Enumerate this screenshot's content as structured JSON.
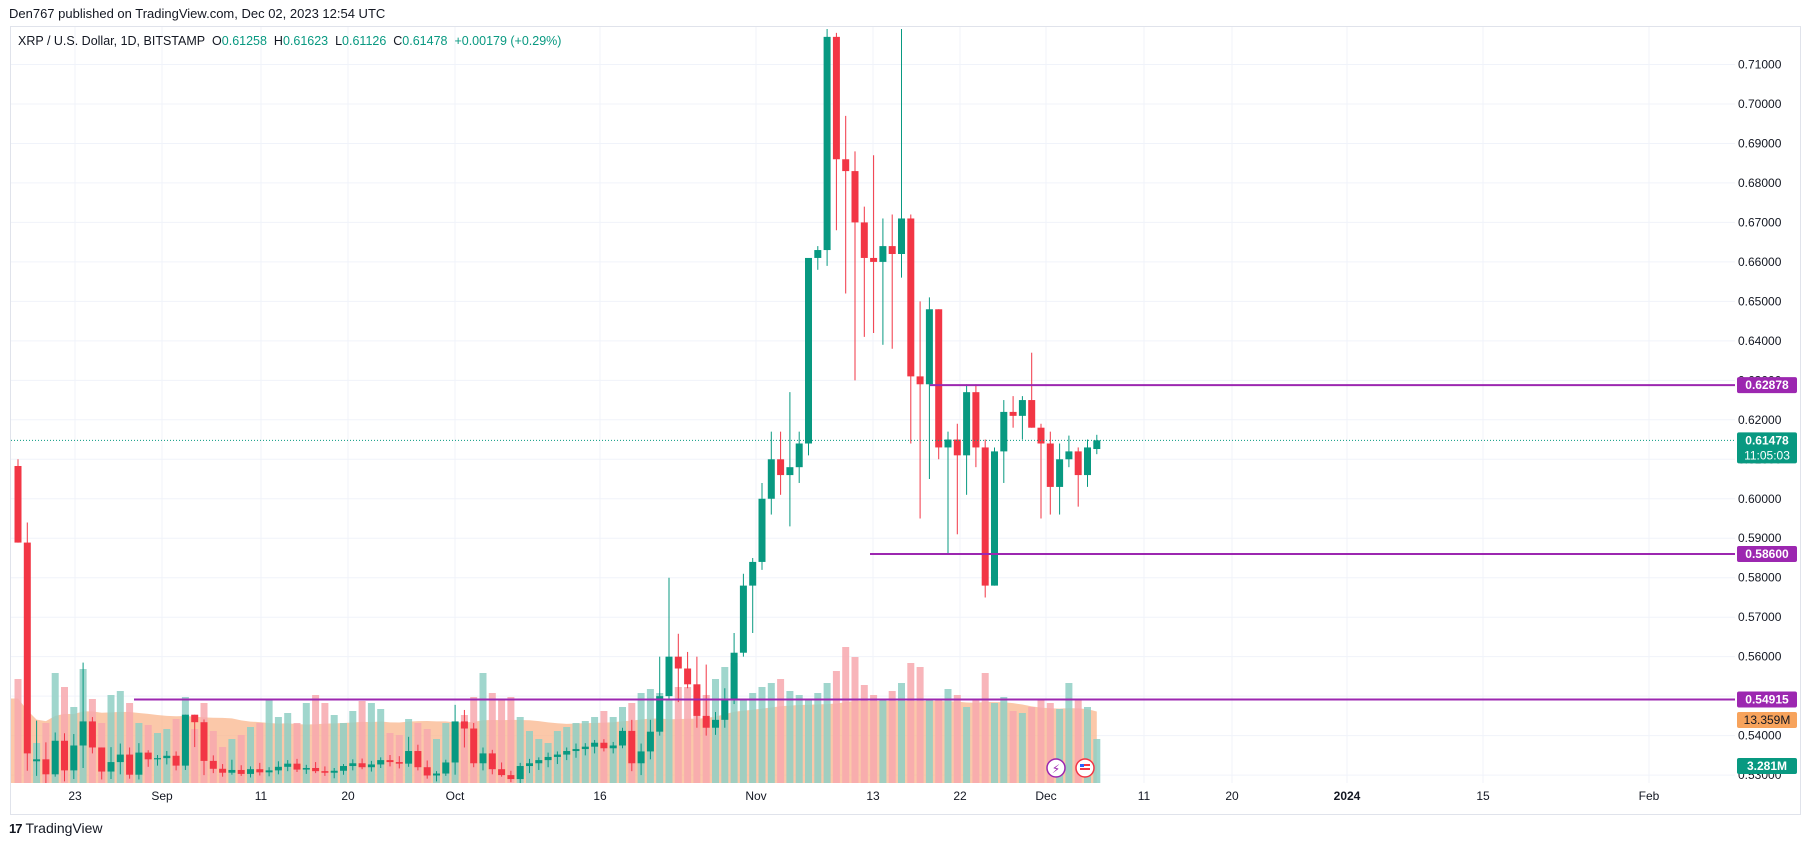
{
  "header": {
    "published": "Den767 published on TradingView.com, Dec 02, 2023 12:54 UTC",
    "symbol": "XRP / U.S. Dollar, 1D, BITSTAMP",
    "o_label": "O",
    "o_value": "0.61258",
    "h_label": "H",
    "h_value": "0.61623",
    "l_label": "L",
    "l_value": "0.61126",
    "c_label": "C",
    "c_value": "0.61478",
    "change": "+0.00179 (+0.29%)"
  },
  "footer": {
    "brand": "TradingView",
    "logo": "17"
  },
  "colors": {
    "up": "#089981",
    "down": "#f23645",
    "up_vol": "#8fcfc4",
    "down_vol": "#f7a8ae",
    "level": "#9c27b0",
    "vol_ma": "#f9b084",
    "grid": "#f0f3fa"
  },
  "chart_data": {
    "type": "candlestick",
    "y_ticks": [
      "0.71000",
      "0.70000",
      "0.69000",
      "0.68000",
      "0.67000",
      "0.66000",
      "0.65000",
      "0.64000",
      "0.63000",
      "0.62000",
      "0.61000",
      "0.60000",
      "0.59000",
      "0.58000",
      "0.57000",
      "0.56000",
      "0.55000",
      "0.54000",
      "0.53000"
    ],
    "x_ticks": [
      "23",
      "Sep",
      "11",
      "20",
      "Oct",
      "16",
      "Nov",
      "13",
      "22",
      "Dec",
      "11",
      "20",
      "2024",
      "15",
      "Feb"
    ],
    "ylim": [
      0.528,
      0.7195
    ],
    "levels": [
      {
        "value": 0.62878,
        "label": "0.62878"
      },
      {
        "value": 0.586,
        "label": "0.58600"
      },
      {
        "value": 0.54915,
        "label": "0.54915"
      }
    ],
    "last_price": {
      "value": 0.61478,
      "label": "0.61478",
      "countdown": "11:05:03"
    },
    "volume_badge": "13.359M",
    "volume_ma_badge": "3.281M",
    "candles": [
      [
        0.6083,
        0.61,
        0.5889,
        0.5889
      ],
      [
        0.5889,
        0.594,
        0.5311,
        0.5355
      ],
      [
        0.5335,
        0.5438,
        0.5298,
        0.534
      ],
      [
        0.534,
        0.5383,
        0.528,
        0.5302
      ],
      [
        0.5302,
        0.5408,
        0.5296,
        0.5387
      ],
      [
        0.5387,
        0.5406,
        0.5284,
        0.5312
      ],
      [
        0.5312,
        0.5404,
        0.529,
        0.5375
      ],
      [
        0.5375,
        0.5585,
        0.5318,
        0.5436
      ],
      [
        0.5436,
        0.5447,
        0.5355,
        0.537
      ],
      [
        0.537,
        0.537,
        0.5289,
        0.5309
      ],
      [
        0.5309,
        0.5371,
        0.529,
        0.5333
      ],
      [
        0.5333,
        0.538,
        0.5302,
        0.5352
      ],
      [
        0.5352,
        0.537,
        0.5291,
        0.5301
      ],
      [
        0.5301,
        0.5381,
        0.5289,
        0.5357
      ],
      [
        0.5357,
        0.5363,
        0.5321,
        0.534
      ],
      [
        0.534,
        0.5351,
        0.5324,
        0.5343
      ],
      [
        0.5343,
        0.5361,
        0.5327,
        0.5349
      ],
      [
        0.5349,
        0.536,
        0.5312,
        0.5324
      ],
      [
        0.5324,
        0.5453,
        0.5313,
        0.5453
      ],
      [
        0.5453,
        0.5453,
        0.5371,
        0.5434
      ],
      [
        0.5434,
        0.5441,
        0.53,
        0.5336
      ],
      [
        0.5336,
        0.535,
        0.5305,
        0.5316
      ],
      [
        0.5316,
        0.5328,
        0.5296,
        0.5306
      ],
      [
        0.5306,
        0.5339,
        0.5301,
        0.5313
      ],
      [
        0.5313,
        0.5325,
        0.5298,
        0.5303
      ],
      [
        0.5303,
        0.5322,
        0.5294,
        0.5315
      ],
      [
        0.5315,
        0.5331,
        0.5299,
        0.5307
      ],
      [
        0.5307,
        0.532,
        0.5297,
        0.5312
      ],
      [
        0.5312,
        0.5335,
        0.5302,
        0.5321
      ],
      [
        0.5321,
        0.5338,
        0.531,
        0.5329
      ],
      [
        0.5329,
        0.5341,
        0.5308,
        0.5314
      ],
      [
        0.5314,
        0.5326,
        0.5303,
        0.5318
      ],
      [
        0.5318,
        0.5333,
        0.5305,
        0.531
      ],
      [
        0.531,
        0.5322,
        0.5298,
        0.5306
      ],
      [
        0.5306,
        0.5318,
        0.5292,
        0.5311
      ],
      [
        0.5311,
        0.5328,
        0.5301,
        0.5323
      ],
      [
        0.5323,
        0.534,
        0.5312,
        0.533
      ],
      [
        0.533,
        0.5342,
        0.5315,
        0.532
      ],
      [
        0.532,
        0.5336,
        0.5309,
        0.5327
      ],
      [
        0.5327,
        0.5345,
        0.5318,
        0.5338
      ],
      [
        0.5338,
        0.5351,
        0.5322,
        0.5333
      ],
      [
        0.5333,
        0.5348,
        0.5317,
        0.5329
      ],
      [
        0.5329,
        0.5397,
        0.5321,
        0.5361
      ],
      [
        0.5361,
        0.5377,
        0.5312,
        0.532
      ],
      [
        0.532,
        0.5337,
        0.5291,
        0.5299
      ],
      [
        0.5299,
        0.531,
        0.5284,
        0.5304
      ],
      [
        0.5304,
        0.5339,
        0.5298,
        0.5332
      ],
      [
        0.5332,
        0.5478,
        0.5301,
        0.5436
      ],
      [
        0.5436,
        0.5465,
        0.537,
        0.5418
      ],
      [
        0.5418,
        0.5432,
        0.532,
        0.533
      ],
      [
        0.533,
        0.537,
        0.5312,
        0.5355
      ],
      [
        0.5355,
        0.5364,
        0.5302,
        0.5315
      ],
      [
        0.5315,
        0.5332,
        0.5296,
        0.53
      ],
      [
        0.53,
        0.5311,
        0.5282,
        0.529
      ],
      [
        0.529,
        0.5331,
        0.528,
        0.5323
      ],
      [
        0.5323,
        0.5341,
        0.5305,
        0.533
      ],
      [
        0.533,
        0.5345,
        0.5313,
        0.5338
      ],
      [
        0.5338,
        0.5357,
        0.532,
        0.5346
      ],
      [
        0.5346,
        0.536,
        0.5328,
        0.5352
      ],
      [
        0.5352,
        0.537,
        0.5338,
        0.5361
      ],
      [
        0.5361,
        0.538,
        0.5344,
        0.5366
      ],
      [
        0.5366,
        0.5381,
        0.535,
        0.5372
      ],
      [
        0.5372,
        0.5389,
        0.5355,
        0.5382
      ],
      [
        0.5382,
        0.5391,
        0.536,
        0.5368
      ],
      [
        0.5368,
        0.5384,
        0.5355,
        0.5375
      ],
      [
        0.5375,
        0.542,
        0.5368,
        0.5412
      ],
      [
        0.5412,
        0.544,
        0.531,
        0.533
      ],
      [
        0.533,
        0.538,
        0.53,
        0.536
      ],
      [
        0.536,
        0.544,
        0.534,
        0.541
      ],
      [
        0.541,
        0.56,
        0.54,
        0.55
      ],
      [
        0.55,
        0.58,
        0.549,
        0.56
      ],
      [
        0.56,
        0.5658,
        0.5485,
        0.557
      ],
      [
        0.557,
        0.5612,
        0.552,
        0.553
      ],
      [
        0.553,
        0.56,
        0.542,
        0.545
      ],
      [
        0.545,
        0.558,
        0.54,
        0.542
      ],
      [
        0.542,
        0.546,
        0.5402,
        0.544
      ],
      [
        0.544,
        0.552,
        0.542,
        0.549
      ],
      [
        0.549,
        0.566,
        0.548,
        0.561
      ],
      [
        0.561,
        0.581,
        0.56,
        0.578
      ],
      [
        0.578,
        0.585,
        0.566,
        0.584
      ],
      [
        0.584,
        0.604,
        0.582,
        0.6
      ],
      [
        0.6,
        0.617,
        0.596,
        0.61
      ],
      [
        0.61,
        0.617,
        0.601,
        0.606
      ],
      [
        0.606,
        0.627,
        0.593,
        0.608
      ],
      [
        0.608,
        0.617,
        0.604,
        0.614
      ],
      [
        0.614,
        0.661,
        0.611,
        0.661
      ],
      [
        0.661,
        0.664,
        0.658,
        0.663
      ],
      [
        0.663,
        0.719,
        0.659,
        0.717
      ],
      [
        0.717,
        0.718,
        0.668,
        0.686
      ],
      [
        0.686,
        0.697,
        0.652,
        0.683
      ],
      [
        0.683,
        0.688,
        0.63,
        0.67
      ],
      [
        0.67,
        0.674,
        0.641,
        0.661
      ],
      [
        0.661,
        0.687,
        0.642,
        0.66
      ],
      [
        0.66,
        0.671,
        0.639,
        0.664
      ],
      [
        0.664,
        0.672,
        0.638,
        0.662
      ],
      [
        0.662,
        0.719,
        0.656,
        0.671
      ],
      [
        0.671,
        0.672,
        0.614,
        0.631
      ],
      [
        0.631,
        0.65,
        0.595,
        0.629
      ],
      [
        0.629,
        0.651,
        0.605,
        0.648
      ],
      [
        0.648,
        0.648,
        0.61,
        0.613
      ],
      [
        0.613,
        0.617,
        0.586,
        0.615
      ],
      [
        0.615,
        0.619,
        0.591,
        0.611
      ],
      [
        0.611,
        0.629,
        0.601,
        0.627
      ],
      [
        0.627,
        0.629,
        0.608,
        0.613
      ],
      [
        0.613,
        0.615,
        0.575,
        0.578
      ],
      [
        0.578,
        0.613,
        0.578,
        0.612
      ],
      [
        0.612,
        0.625,
        0.604,
        0.622
      ],
      [
        0.622,
        0.626,
        0.618,
        0.621
      ],
      [
        0.621,
        0.626,
        0.615,
        0.625
      ],
      [
        0.625,
        0.637,
        0.618,
        0.618
      ],
      [
        0.618,
        0.619,
        0.595,
        0.614
      ],
      [
        0.614,
        0.617,
        0.596,
        0.603
      ],
      [
        0.603,
        0.614,
        0.596,
        0.61
      ],
      [
        0.61,
        0.616,
        0.608,
        0.612
      ],
      [
        0.612,
        0.613,
        0.598,
        0.606
      ],
      [
        0.606,
        0.615,
        0.603,
        0.613
      ],
      [
        0.6126,
        0.6162,
        0.6113,
        0.6148
      ]
    ],
    "volumes": [
      0.52,
      0.33,
      0.2,
      0.3,
      0.55,
      0.48,
      0.38,
      0.57,
      0.42,
      0.3,
      0.44,
      0.46,
      0.4,
      0.3,
      0.29,
      0.25,
      0.27,
      0.32,
      0.43,
      0.27,
      0.4,
      0.26,
      0.18,
      0.22,
      0.24,
      0.28,
      0.3,
      0.42,
      0.33,
      0.35,
      0.3,
      0.4,
      0.44,
      0.4,
      0.34,
      0.3,
      0.36,
      0.41,
      0.4,
      0.37,
      0.25,
      0.24,
      0.32,
      0.3,
      0.27,
      0.22,
      0.3,
      0.25,
      0.34,
      0.43,
      0.55,
      0.45,
      0.42,
      0.43,
      0.33,
      0.26,
      0.22,
      0.2,
      0.26,
      0.28,
      0.3,
      0.31,
      0.33,
      0.36,
      0.33,
      0.38,
      0.4,
      0.45,
      0.47,
      0.45,
      0.42,
      0.48,
      0.48,
      0.42,
      0.44,
      0.52,
      0.58,
      0.6,
      0.42,
      0.45,
      0.48,
      0.5,
      0.52,
      0.46,
      0.44,
      0.42,
      0.45,
      0.5,
      0.56,
      0.68,
      0.63,
      0.49,
      0.44,
      0.42,
      0.46,
      0.5,
      0.6,
      0.58,
      0.42,
      0.42,
      0.47,
      0.44,
      0.38,
      0.42,
      0.55,
      0.4,
      0.43,
      0.36,
      0.35,
      0.38,
      0.42,
      0.4,
      0.37,
      0.5,
      0.42,
      0.38,
      0.22
    ]
  }
}
